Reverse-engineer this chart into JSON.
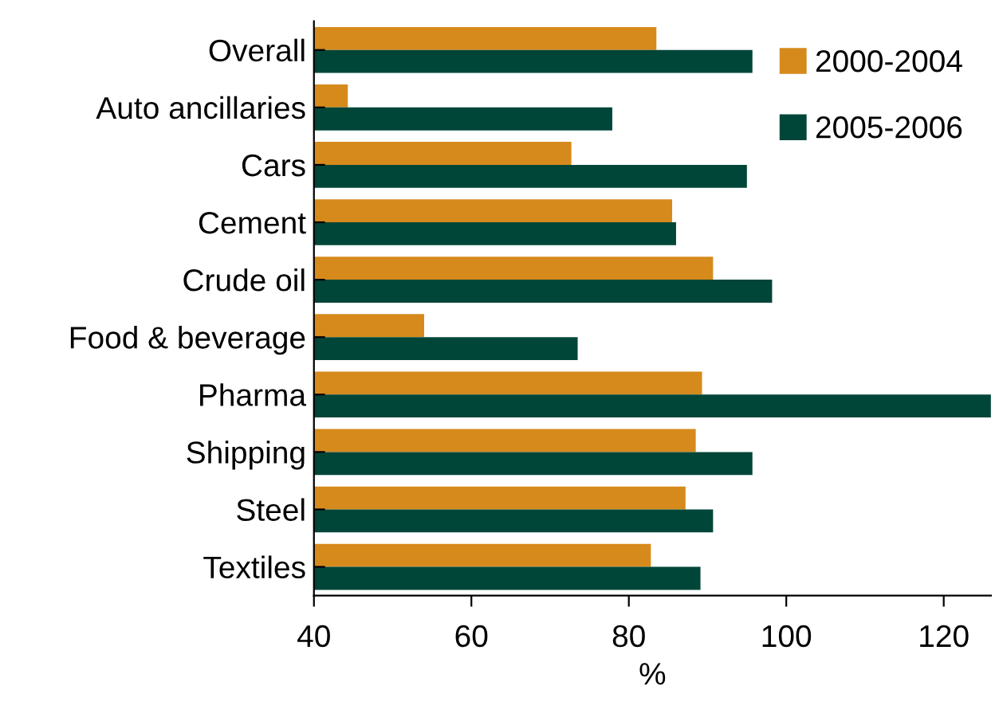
{
  "chart_data": {
    "type": "bar",
    "orientation": "horizontal",
    "xlabel": "%",
    "categories": [
      "Overall",
      "Auto ancillaries",
      "Cars",
      "Cement",
      "Crude oil",
      "Food & beverage",
      "Pharma",
      "Shipping",
      "Steel",
      "Textiles"
    ],
    "series": [
      {
        "name": "2000-2004",
        "color": "#d68a1c",
        "values": [
          83.5,
          44.3,
          72.7,
          85.5,
          90.7,
          54,
          89.3,
          88.5,
          87.2,
          82.8
        ]
      },
      {
        "name": "2005-2006",
        "color": "#004638",
        "values": [
          95.7,
          77.9,
          95,
          86,
          98.2,
          73.5,
          126,
          95.7,
          90.7,
          89.1
        ]
      }
    ],
    "xlim": [
      40,
      126
    ],
    "xticks": [
      40,
      60,
      80,
      100,
      120
    ],
    "grid": false,
    "legend": "top right"
  }
}
